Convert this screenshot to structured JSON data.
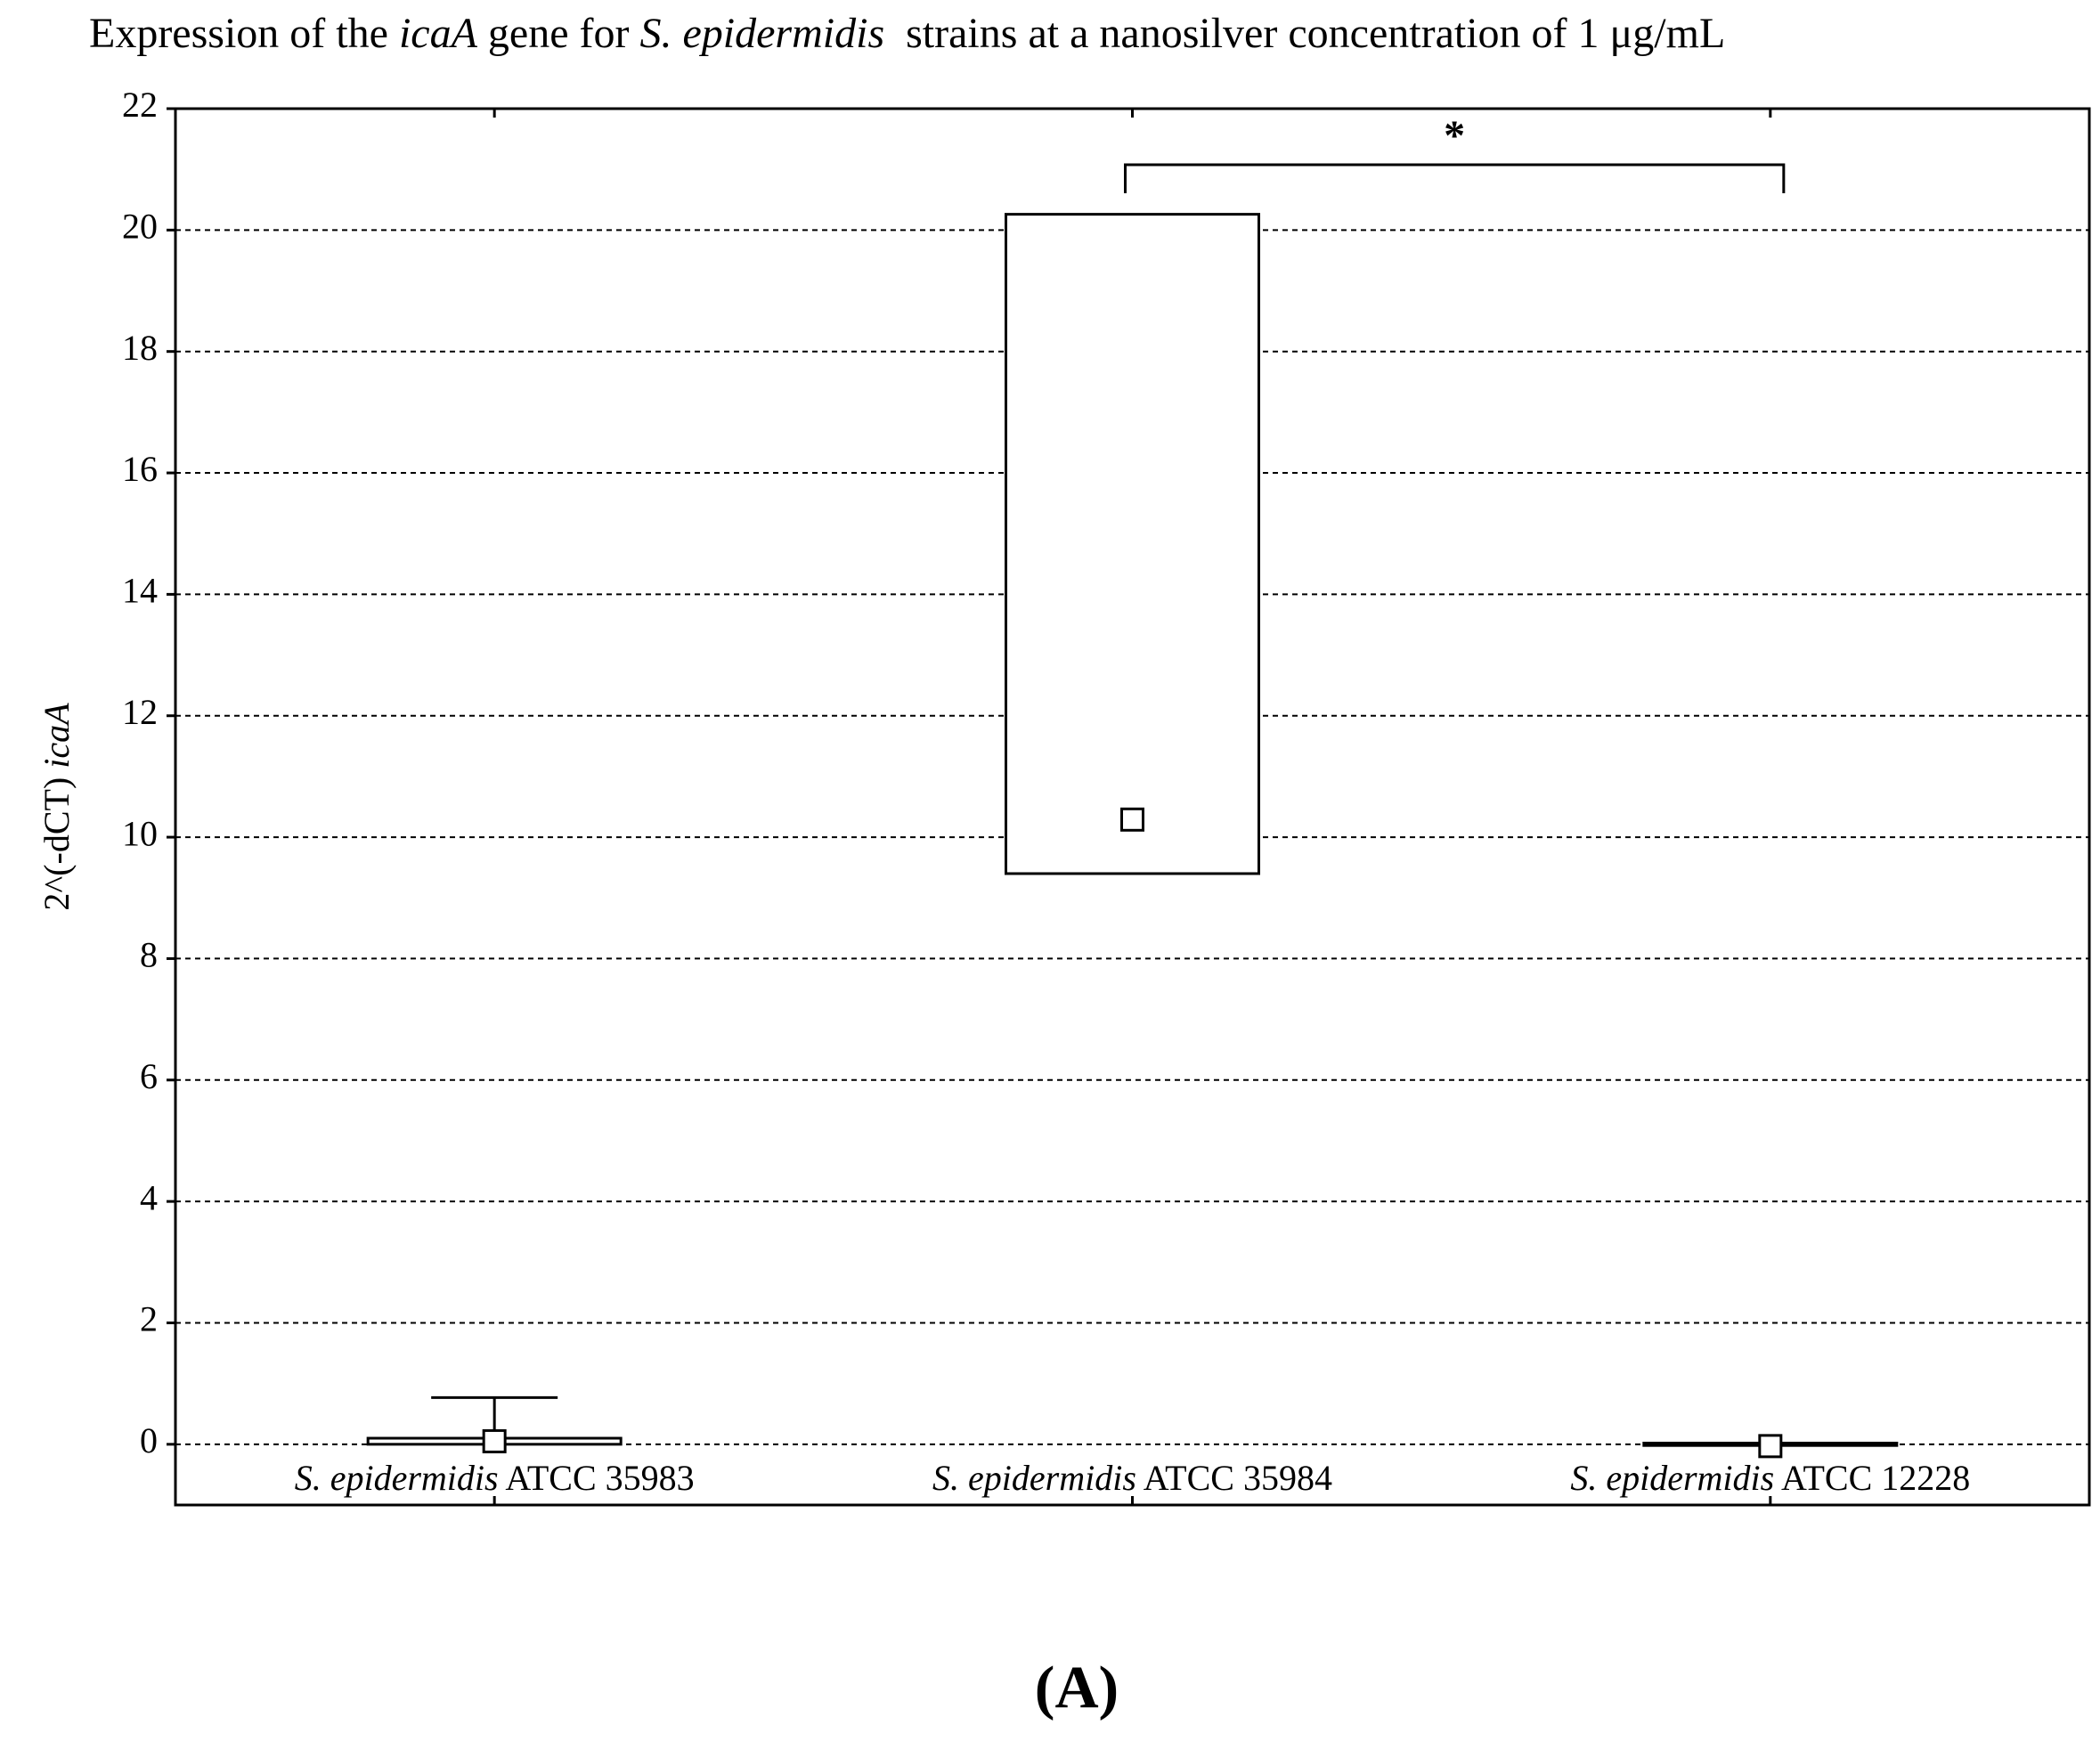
{
  "chart_data": {
    "type": "box",
    "title": [
      "Expression of the ",
      "icaA",
      " gene for ",
      "S. epidermidis",
      "  strains at a nanosilver concentration of 1 μg/mL"
    ],
    "ylabel": [
      "2^(-dCT) ",
      "icaA"
    ],
    "categories": [
      [
        "S. epidermidis",
        " ATCC 35983"
      ],
      [
        "S. epidermidis",
        " ATCC 35984"
      ],
      [
        "S. epidermidis",
        " ATCC 12228"
      ]
    ],
    "median": [
      0.05,
      10.29,
      -0.03
    ],
    "box_low": [
      0,
      9.4,
      -0.02
    ],
    "box_high": [
      0.1,
      20.26,
      0.02
    ],
    "whisker_high": [
      0.77,
      null,
      null
    ],
    "ylim": [
      -1,
      22
    ],
    "yticks": [
      0,
      2,
      4,
      6,
      8,
      10,
      12,
      14,
      16,
      18,
      20,
      22
    ],
    "grid": true,
    "color": "#000000",
    "significance": {
      "pair": [
        1,
        2
      ],
      "label": "*"
    },
    "panel_label": "(A)"
  }
}
